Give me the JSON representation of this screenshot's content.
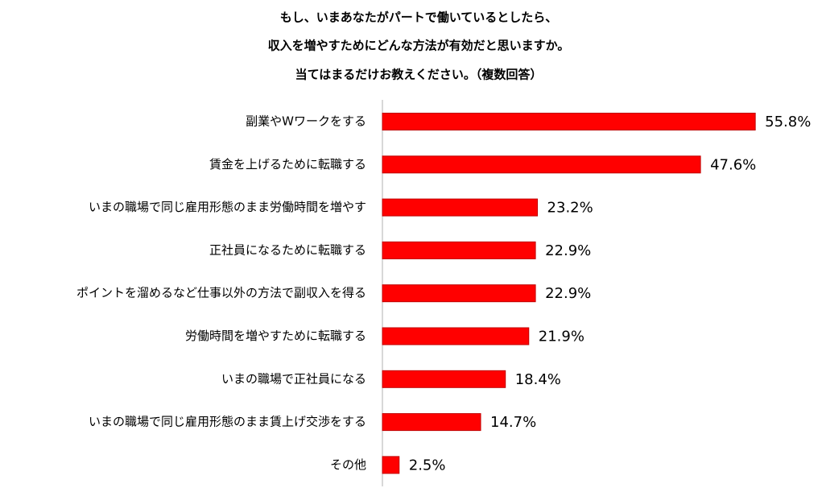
{
  "chart_data": {
    "type": "bar",
    "orientation": "horizontal",
    "title": [
      "もし、いまあなたがパートで働いているとしたら、",
      "収入を増やすためにどんな方法が有効だと思いますか。",
      "当てはまるだけお教えください。（複数回答）"
    ],
    "categories": [
      "副業やWワークをする",
      "賃金を上げるために転職する",
      "いまの職場で同じ雇用形態のまま労働時間を増やす",
      "正社員になるために転職する",
      "ポイントを溜めるなど仕事以外の方法で副収入を得る",
      "労働時間を増やすために転職する",
      "いまの職場で正社員になる",
      "いまの職場で同じ雇用形態のまま賃上げ交渉をする",
      "その他"
    ],
    "values": [
      55.8,
      47.6,
      23.2,
      22.9,
      22.9,
      21.9,
      18.4,
      14.7,
      2.5
    ],
    "value_labels": [
      "55.8%",
      "47.6%",
      "23.2%",
      "22.9%",
      "22.9%",
      "21.9%",
      "18.4%",
      "14.7%",
      "2.5%"
    ],
    "unit": "%",
    "bar_color": "#ff0000",
    "bar_border_color": "#c00000",
    "axis_color": "#b0b0b0",
    "grid": false,
    "legend": "none",
    "xlim": [
      0,
      60
    ]
  }
}
